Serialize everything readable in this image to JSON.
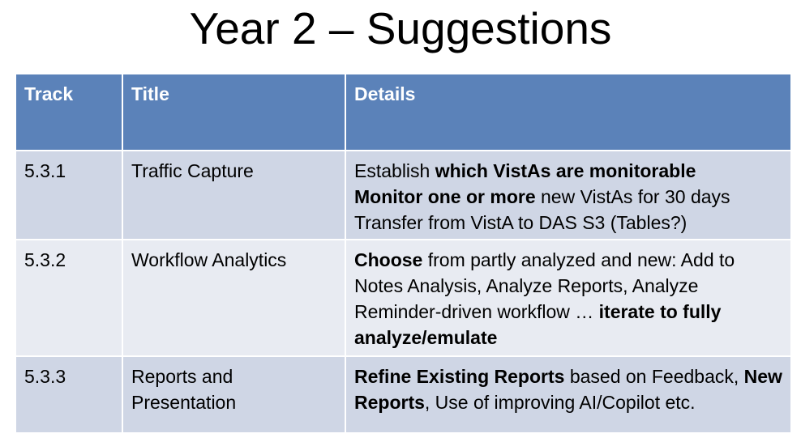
{
  "title": "Year 2 – Suggestions",
  "table": {
    "headers": [
      "Track",
      "Title",
      "Details"
    ],
    "rows": [
      {
        "track": "5.3.1",
        "title": "Traffic Capture",
        "details": [
          [
            {
              "t": "Establish ",
              "b": false
            },
            {
              "t": "which VistAs are monitorable",
              "b": true
            }
          ],
          [
            {
              "t": "Monitor one or more",
              "b": true
            },
            {
              "t": " new VistAs for 30 days",
              "b": false
            }
          ],
          [
            {
              "t": "Transfer from VistA to DAS S3 (Tables?)",
              "b": false
            }
          ]
        ]
      },
      {
        "track": "5.3.2",
        "title": "Workflow Analytics",
        "details": [
          [
            {
              "t": "Choose",
              "b": true
            },
            {
              "t": " from partly analyzed and new: Add to Notes Analysis, Analyze Reports, Analyze Reminder-driven workflow … ",
              "b": false
            },
            {
              "t": "iterate to fully analyze/emulate",
              "b": true
            }
          ]
        ]
      },
      {
        "track": "5.3.3",
        "title": "Reports and Presentation",
        "details": [
          [
            {
              "t": "Refine Existing Reports",
              "b": true
            },
            {
              "t": " based on Feedback, ",
              "b": false
            },
            {
              "t": "New Reports",
              "b": true
            },
            {
              "t": ", Use of improving AI/Copilot etc.",
              "b": false
            }
          ]
        ]
      }
    ]
  }
}
